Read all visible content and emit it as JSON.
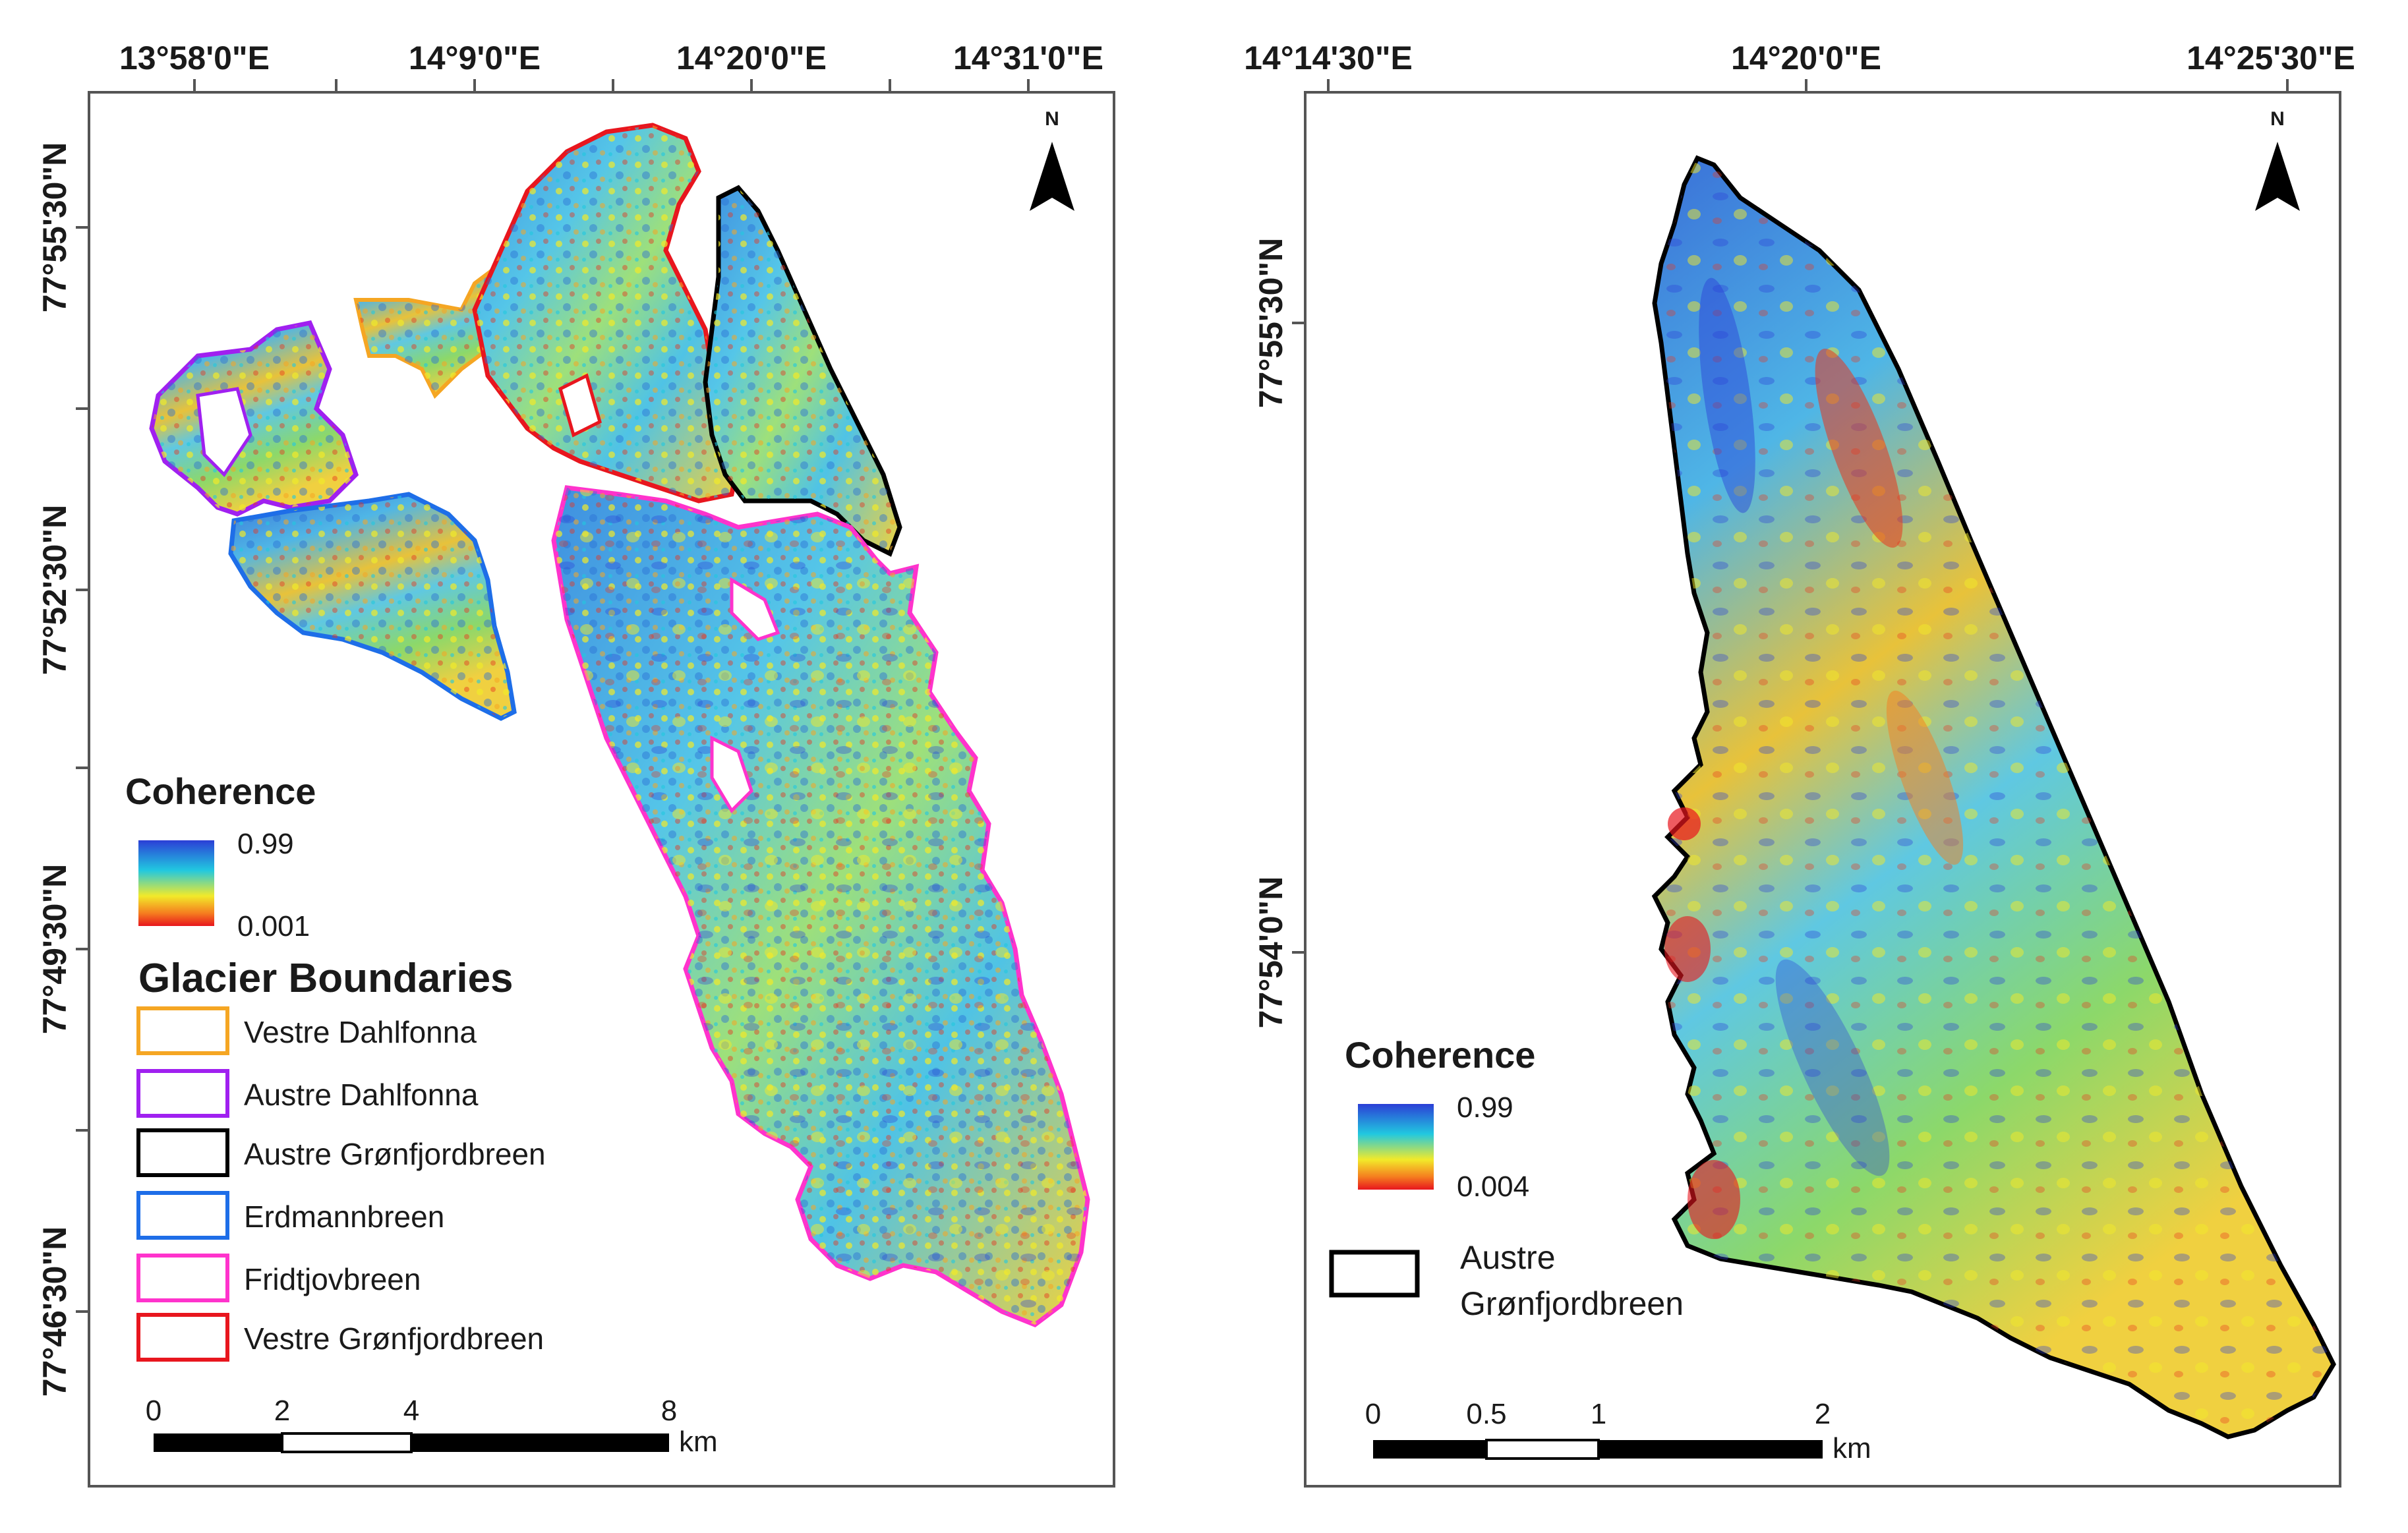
{
  "left_map": {
    "top_coords": [
      "13°58'0\"E",
      "14°9'0\"E",
      "14°20'0\"E",
      "14°31'0\"E"
    ],
    "left_coords": [
      "77°55'30\"N",
      "77°52'30\"N",
      "77°49'30\"N",
      "77°46'30\"N"
    ],
    "north_label": "N",
    "coherence_title": "Coherence",
    "coherence_max": "0.99",
    "coherence_min": "0.001",
    "boundaries_title": "Glacier Boundaries",
    "boundaries": [
      {
        "name": "Vestre Dahlfonna",
        "color": "#f5a623"
      },
      {
        "name": "Austre Dahlfonna",
        "color": "#a020f0"
      },
      {
        "name": "Austre Grønfjordbreen",
        "color": "#000000"
      },
      {
        "name": "Erdmannbreen",
        "color": "#1e6ee8"
      },
      {
        "name": "Fridtjovbreen",
        "color": "#ff33cc"
      },
      {
        "name": "Vestre Grønfjordbreen",
        "color": "#e8161e"
      }
    ],
    "scale_ticks": [
      "0",
      "2",
      "4",
      "8"
    ],
    "scale_unit": "km"
  },
  "right_map": {
    "top_coords": [
      "14°14'30\"E",
      "14°20'0\"E",
      "14°25'30\"E"
    ],
    "left_coords": [
      "77°55'30\"N",
      "77°54'0\"N"
    ],
    "north_label": "N",
    "coherence_title": "Coherence",
    "coherence_max": "0.99",
    "coherence_min": "0.004",
    "boundary_label_line1": "Austre",
    "boundary_label_line2": "Grønfjordbreen",
    "scale_ticks": [
      "0",
      "0.5",
      "1",
      "2"
    ],
    "scale_unit": "km"
  },
  "colors": {
    "ramp_high": "#2b3fd6",
    "ramp_mid": "#21c8e0",
    "ramp_yellow": "#f2ea2a",
    "ramp_low": "#e8161e"
  }
}
